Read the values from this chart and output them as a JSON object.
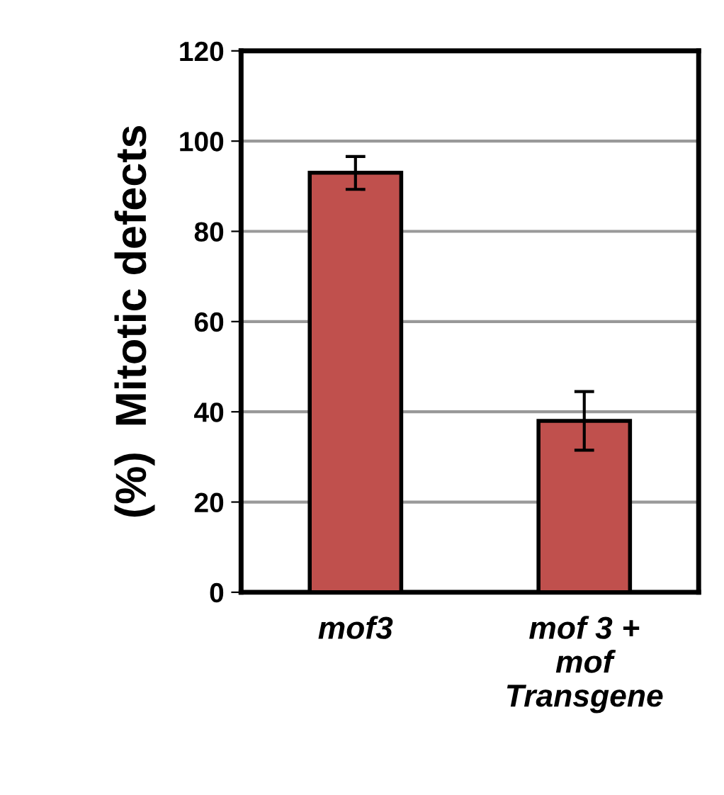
{
  "chart_data": {
    "type": "bar",
    "ylabel": "(%)  Mitotic defects",
    "categories": [
      "mof3",
      "mof 3 +\nmof\nTransgene"
    ],
    "values": [
      93,
      38
    ],
    "errors": [
      [
        89.3,
        96.6
      ],
      [
        31.5,
        44.5
      ]
    ],
    "color": "#c0504d",
    "ylim": [
      0,
      120
    ],
    "yticks": [
      0,
      20,
      40,
      60,
      80,
      100,
      120
    ],
    "grid": "y",
    "legend": false
  }
}
